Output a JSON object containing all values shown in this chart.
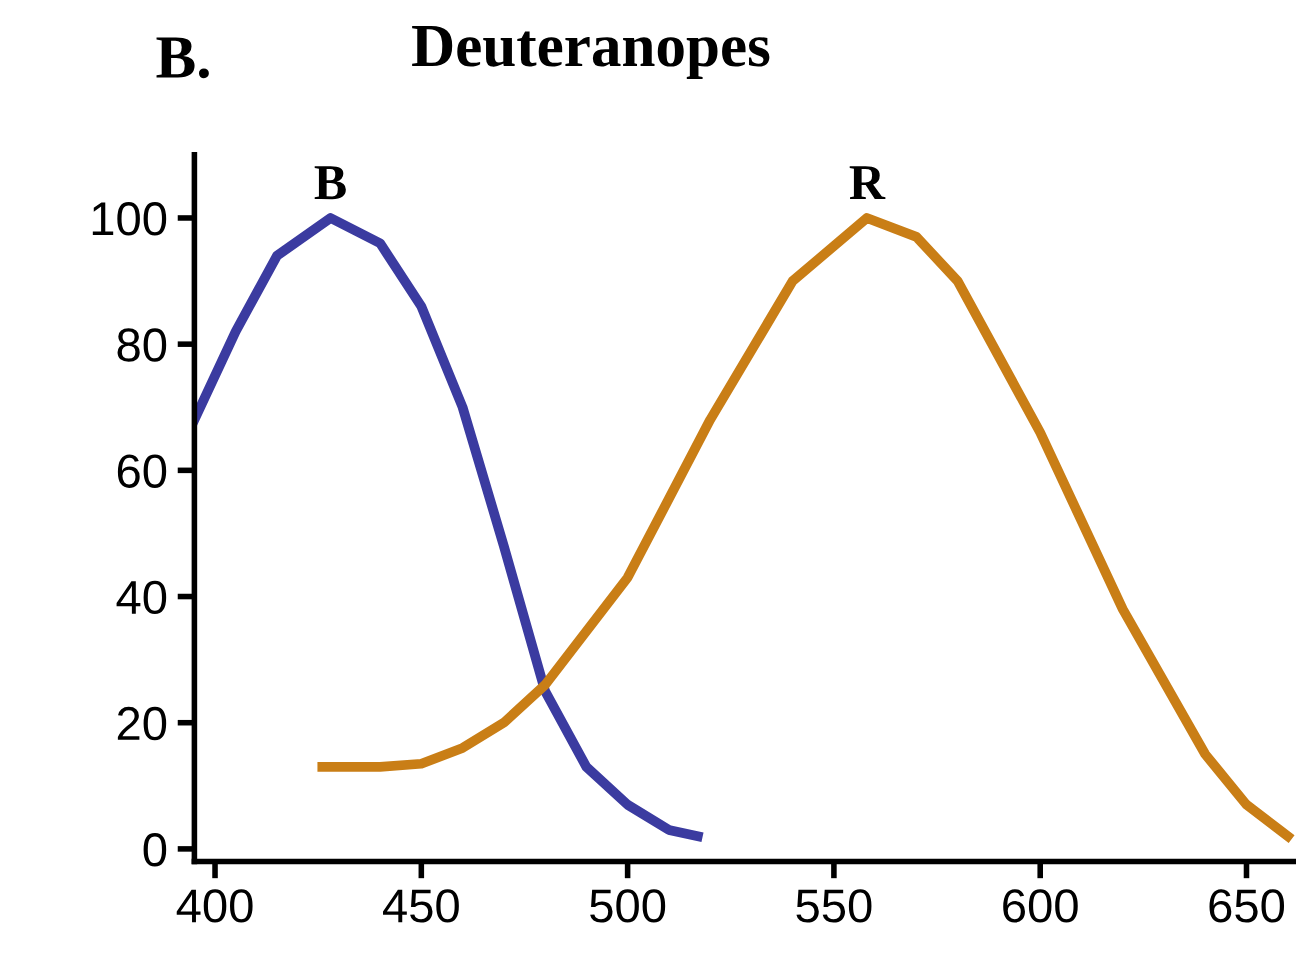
{
  "chart_data": {
    "type": "line",
    "title": "Deuteranopes",
    "annotations": [
      "B.",
      {
        "text": "B",
        "x": 428,
        "y": 100
      },
      {
        "text": "R",
        "x": 558,
        "y": 100
      }
    ],
    "series": [
      {
        "color": "#3b3ba0",
        "x": [
          395,
          405,
          415,
          428,
          440,
          450,
          460,
          470,
          480,
          490,
          500,
          510,
          517
        ],
        "values": [
          68,
          82,
          94,
          100,
          96,
          86,
          70,
          48,
          25,
          13,
          7,
          3,
          2
        ]
      },
      {
        "color": "#c97e16",
        "x": [
          426,
          440,
          450,
          460,
          470,
          480,
          500,
          520,
          540,
          558,
          570,
          580,
          600,
          620,
          640,
          650,
          660
        ],
        "values": [
          13,
          13,
          13.5,
          16,
          20,
          26,
          43,
          68,
          90,
          100,
          97,
          90,
          66,
          38,
          15,
          7,
          2
        ]
      }
    ],
    "xlim": [
      395,
      662
    ],
    "ylim": [
      -2,
      110
    ],
    "xticks": [
      400,
      450,
      500,
      550,
      600,
      650
    ],
    "yticks": [
      0,
      20,
      40,
      60,
      80,
      100
    ],
    "grid": false,
    "legend": false,
    "line_style": "solid",
    "marker": "none"
  }
}
